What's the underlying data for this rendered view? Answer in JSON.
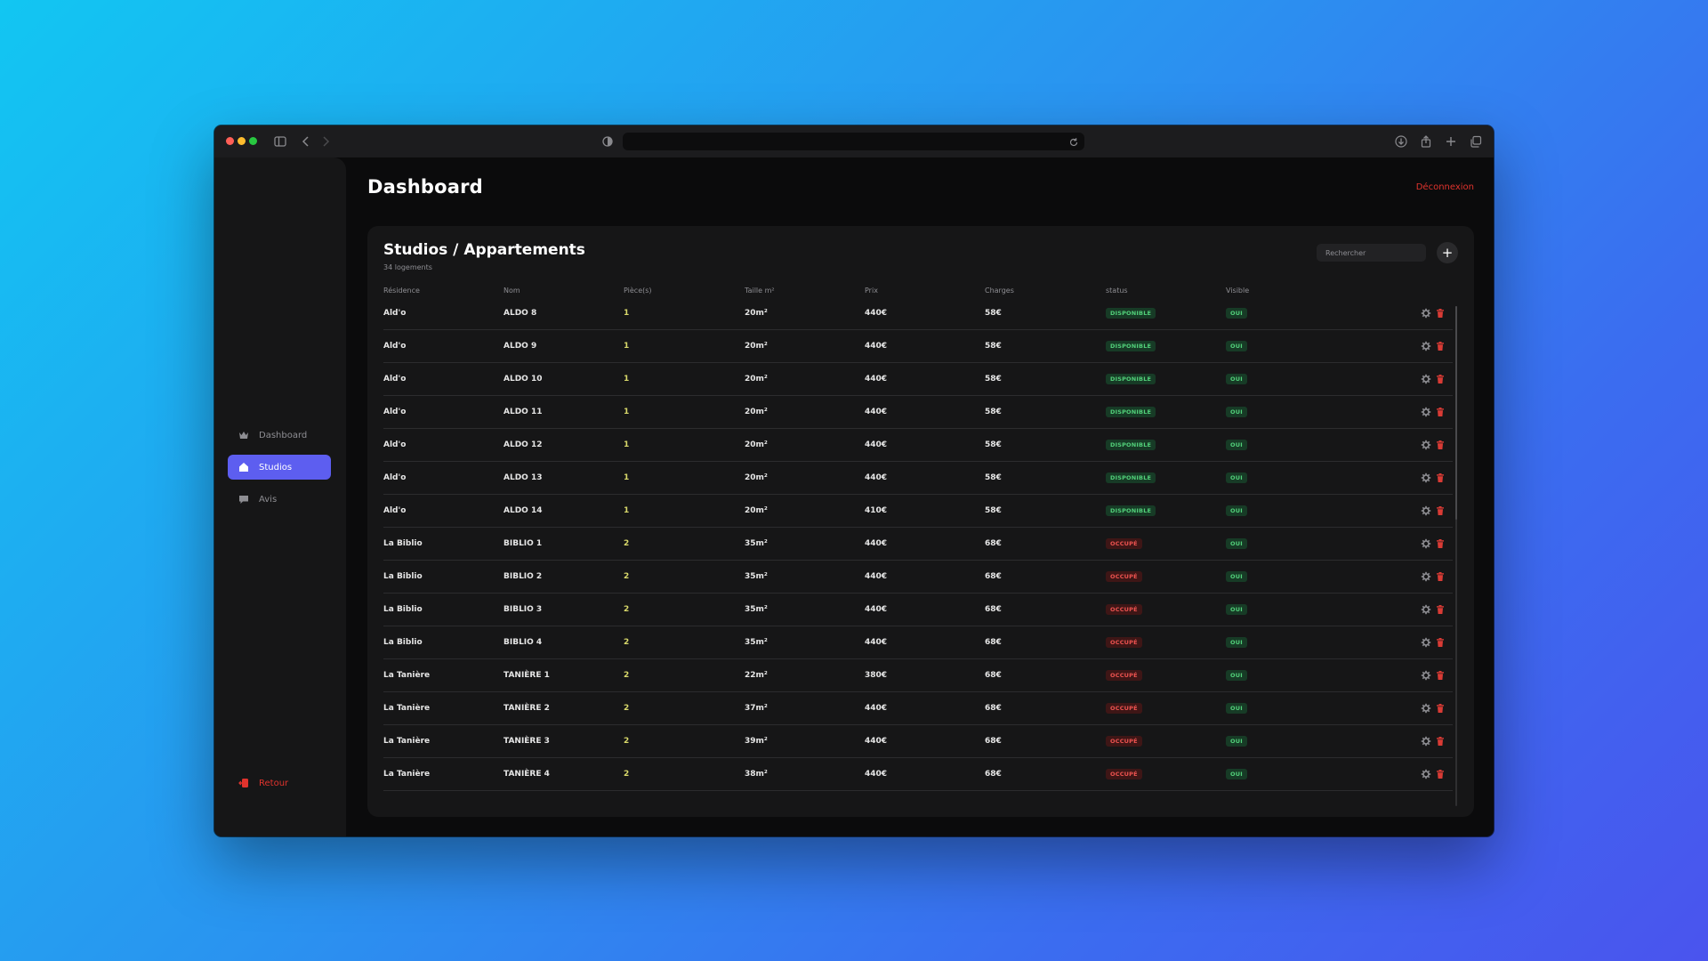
{
  "sidebar": {
    "items": [
      {
        "label": "Dashboard",
        "icon": "crown-icon"
      },
      {
        "label": "Studios",
        "icon": "home-icon"
      },
      {
        "label": "Avis",
        "icon": "chat-icon"
      }
    ],
    "back_label": "Retour"
  },
  "header": {
    "title": "Dashboard",
    "logout_label": "Déconnexion"
  },
  "card": {
    "title": "Studios / Appartements",
    "subtitle": "34 logements",
    "search_placeholder": "Rechercher",
    "add_label": "+"
  },
  "table": {
    "headers": [
      "Résidence",
      "Nom",
      "Pièce(s)",
      "Taille m²",
      "Prix",
      "Charges",
      "status",
      "Visible"
    ],
    "rows": [
      {
        "residence": "Ald'o",
        "nom": "ALDO 8",
        "pieces": "1",
        "taille": "20m²",
        "prix": "440€",
        "charges": "58€",
        "status": "DISPONIBLE",
        "visible": "OUI"
      },
      {
        "residence": "Ald'o",
        "nom": "ALDO 9",
        "pieces": "1",
        "taille": "20m²",
        "prix": "440€",
        "charges": "58€",
        "status": "DISPONIBLE",
        "visible": "OUI"
      },
      {
        "residence": "Ald'o",
        "nom": "ALDO 10",
        "pieces": "1",
        "taille": "20m²",
        "prix": "440€",
        "charges": "58€",
        "status": "DISPONIBLE",
        "visible": "OUI"
      },
      {
        "residence": "Ald'o",
        "nom": "ALDO 11",
        "pieces": "1",
        "taille": "20m²",
        "prix": "440€",
        "charges": "58€",
        "status": "DISPONIBLE",
        "visible": "OUI"
      },
      {
        "residence": "Ald'o",
        "nom": "ALDO 12",
        "pieces": "1",
        "taille": "20m²",
        "prix": "440€",
        "charges": "58€",
        "status": "DISPONIBLE",
        "visible": "OUI"
      },
      {
        "residence": "Ald'o",
        "nom": "ALDO 13",
        "pieces": "1",
        "taille": "20m²",
        "prix": "440€",
        "charges": "58€",
        "status": "DISPONIBLE",
        "visible": "OUI"
      },
      {
        "residence": "Ald'o",
        "nom": "ALDO 14",
        "pieces": "1",
        "taille": "20m²",
        "prix": "410€",
        "charges": "58€",
        "status": "DISPONIBLE",
        "visible": "OUI"
      },
      {
        "residence": "La Biblio",
        "nom": "BIBLIO 1",
        "pieces": "2",
        "taille": "35m²",
        "prix": "440€",
        "charges": "68€",
        "status": "OCCUPÉ",
        "visible": "OUI"
      },
      {
        "residence": "La Biblio",
        "nom": "BIBLIO 2",
        "pieces": "2",
        "taille": "35m²",
        "prix": "440€",
        "charges": "68€",
        "status": "OCCUPÉ",
        "visible": "OUI"
      },
      {
        "residence": "La Biblio",
        "nom": "BIBLIO 3",
        "pieces": "2",
        "taille": "35m²",
        "prix": "440€",
        "charges": "68€",
        "status": "OCCUPÉ",
        "visible": "OUI"
      },
      {
        "residence": "La Biblio",
        "nom": "BIBLIO 4",
        "pieces": "2",
        "taille": "35m²",
        "prix": "440€",
        "charges": "68€",
        "status": "OCCUPÉ",
        "visible": "OUI"
      },
      {
        "residence": "La Tanière",
        "nom": "TANIÈRE 1",
        "pieces": "2",
        "taille": "22m²",
        "prix": "380€",
        "charges": "68€",
        "status": "OCCUPÉ",
        "visible": "OUI"
      },
      {
        "residence": "La Tanière",
        "nom": "TANIÈRE 2",
        "pieces": "2",
        "taille": "37m²",
        "prix": "440€",
        "charges": "68€",
        "status": "OCCUPÉ",
        "visible": "OUI"
      },
      {
        "residence": "La Tanière",
        "nom": "TANIÈRE 3",
        "pieces": "2",
        "taille": "39m²",
        "prix": "440€",
        "charges": "68€",
        "status": "OCCUPÉ",
        "visible": "OUI"
      },
      {
        "residence": "La Tanière",
        "nom": "TANIÈRE 4",
        "pieces": "2",
        "taille": "38m²",
        "prix": "440€",
        "charges": "68€",
        "status": "OCCUPÉ",
        "visible": "OUI"
      }
    ]
  },
  "colors": {
    "accent": "#5d5ef0",
    "danger": "#e0332d",
    "available": "#52d17a",
    "occupied": "#ef5350"
  }
}
